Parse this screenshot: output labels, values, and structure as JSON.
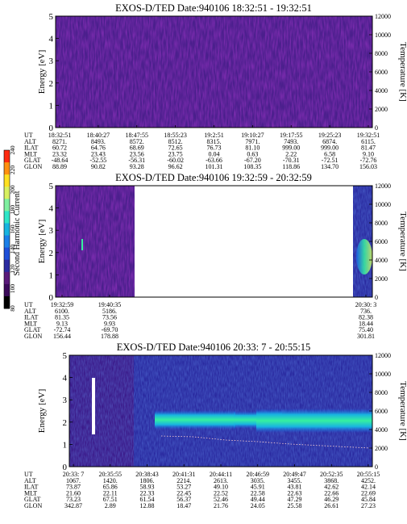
{
  "colorbar": {
    "label": "Second Harmonic Current",
    "ticks": [
      "80",
      "100",
      "120",
      "140",
      "160",
      "180",
      "200",
      "220",
      "240"
    ],
    "colors": [
      "#000000",
      "#3b0a5a",
      "#5a1a7a",
      "#2a2aa0",
      "#1e4fd8",
      "#1b7fe8",
      "#18b4e0",
      "#2ee6c8",
      "#7ff0a0",
      "#d8f060",
      "#ffe020",
      "#ff9010",
      "#ff2a10"
    ]
  },
  "chart_data": [
    {
      "type": "heatmap",
      "title": "EXOS-D/TED   Date:940106   18:32:51 - 19:32:51",
      "ylabel": "Energy [eV]",
      "y2label": "Temperature [K]",
      "ylim": [
        0,
        5
      ],
      "yticks": [
        "0",
        "1",
        "2",
        "3",
        "4",
        "5"
      ],
      "y2lim": [
        0,
        12000
      ],
      "y2ticks": [
        "0",
        "2000",
        "4000",
        "6000",
        "8000",
        "10000",
        "12000"
      ],
      "rows": [
        {
          "name": "UT",
          "values": [
            "18:32:51",
            "18:40:27",
            "18:47:55",
            "18:55:23",
            "19:2:51",
            "19:10:27",
            "19:17:55",
            "19:25:23",
            "19:32:51"
          ]
        },
        {
          "name": "ALT",
          "values": [
            "8271.",
            "8493.",
            "8572.",
            "8512.",
            "8315.",
            "7971.",
            "7493.",
            "6874.",
            "6115."
          ]
        },
        {
          "name": "ILAT",
          "values": [
            "60.72",
            "64.76",
            "68.69",
            "72.65",
            "76.73",
            "81.10",
            "999.00",
            "999.00",
            "81.47"
          ]
        },
        {
          "name": "MLT",
          "values": [
            "23.32",
            "23.43",
            "23.56",
            "23.75",
            "0.04",
            "0.63",
            "2.22",
            "6.58",
            "9.10"
          ]
        },
        {
          "name": "GLAT",
          "values": [
            "-48.64",
            "-52.55",
            "-56.31",
            "-60.02",
            "-63.66",
            "-67.20",
            "-70.31",
            "-72.51",
            "-72.76"
          ]
        },
        {
          "name": "GLON",
          "values": [
            "88.89",
            "90.82",
            "93.28",
            "96.62",
            "101.31",
            "108.35",
            "118.86",
            "134.70",
            "156.03"
          ]
        }
      ]
    },
    {
      "type": "heatmap",
      "title": "EXOS-D/TED   Date:940106   19:32:59 - 20:32:59",
      "ylabel": "Energy [eV]",
      "y2label": "Temperature [K]",
      "ylim": [
        0,
        5
      ],
      "yticks": [
        "0",
        "1",
        "2",
        "3",
        "4",
        "5"
      ],
      "y2lim": [
        0,
        12000
      ],
      "y2ticks": [
        "0",
        "2000",
        "4000",
        "6000",
        "8000",
        "10000",
        "12000"
      ],
      "rows": [
        {
          "name": "UT",
          "values": [
            "19:32:59",
            "19:40:35",
            "20:30: 3"
          ]
        },
        {
          "name": "ALT",
          "values": [
            "6100.",
            "5186.",
            "736."
          ]
        },
        {
          "name": "ILAT",
          "values": [
            "81.35",
            "73.56",
            "82.38"
          ]
        },
        {
          "name": "MLT",
          "values": [
            "9.13",
            "9.93",
            "18.44"
          ]
        },
        {
          "name": "GLAT",
          "values": [
            "-72.74",
            "-69.70",
            "75.40"
          ]
        },
        {
          "name": "GLON",
          "values": [
            "156.44",
            "178.88",
            "301.81"
          ]
        }
      ]
    },
    {
      "type": "heatmap",
      "title": "EXOS-D/TED   Date:940106   20:33: 7 - 20:55:15",
      "ylabel": "Energy [eV]",
      "y2label": "Temperature [K]",
      "ylim": [
        0,
        5
      ],
      "yticks": [
        "0",
        "1",
        "2",
        "3",
        "4",
        "5"
      ],
      "y2lim": [
        0,
        12000
      ],
      "y2ticks": [
        "0",
        "2000",
        "4000",
        "6000",
        "8000",
        "10000",
        "12000"
      ],
      "rows": [
        {
          "name": "UT",
          "values": [
            "20:33: 7",
            "20:35:55",
            "20:38:43",
            "20:41:31",
            "20:44:11",
            "20:46:59",
            "20:49:47",
            "20:52:35",
            "20:55:15"
          ]
        },
        {
          "name": "ALT",
          "values": [
            "1067.",
            "1420.",
            "1806.",
            "2214.",
            "2613.",
            "3035.",
            "3455.",
            "3868.",
            "4252."
          ]
        },
        {
          "name": "ILAT",
          "values": [
            "73.87",
            "65.86",
            "58.93",
            "53.27",
            "49.10",
            "45.91",
            "43.81",
            "42.62",
            "42.14"
          ]
        },
        {
          "name": "MLT",
          "values": [
            "21.60",
            "22.11",
            "22.33",
            "22.45",
            "22.52",
            "22.58",
            "22.63",
            "22.66",
            "22.69"
          ]
        },
        {
          "name": "GLAT",
          "values": [
            "73.23",
            "67.51",
            "61.54",
            "56.37",
            "52.46",
            "49.44",
            "47.29",
            "46.29",
            "45.84"
          ]
        },
        {
          "name": "GLON",
          "values": [
            "342.87",
            "2.89",
            "12.88",
            "18.47",
            "21.76",
            "24.05",
            "25.58",
            "26.61",
            "27.23"
          ]
        }
      ]
    }
  ]
}
